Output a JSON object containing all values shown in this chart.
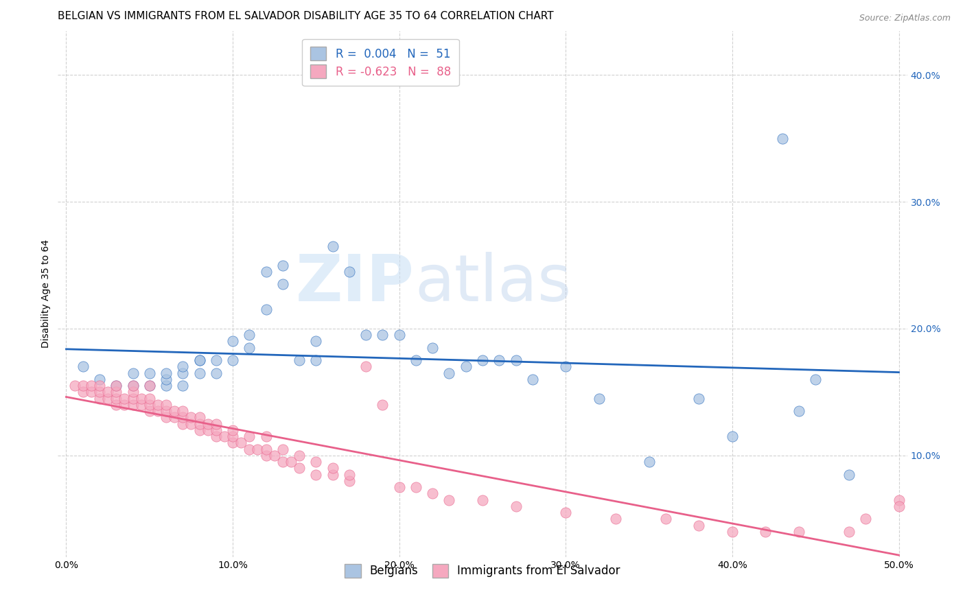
{
  "title": "BELGIAN VS IMMIGRANTS FROM EL SALVADOR DISABILITY AGE 35 TO 64 CORRELATION CHART",
  "source": "Source: ZipAtlas.com",
  "xlabel_ticks": [
    "0.0%",
    "10.0%",
    "20.0%",
    "30.0%",
    "40.0%",
    "50.0%"
  ],
  "xlabel_vals": [
    0.0,
    0.1,
    0.2,
    0.3,
    0.4,
    0.5
  ],
  "ylabel": "Disability Age 35 to 64",
  "right_ytick_labels": [
    "10.0%",
    "20.0%",
    "30.0%",
    "40.0%"
  ],
  "right_ytick_vals": [
    0.1,
    0.2,
    0.3,
    0.4
  ],
  "xlim": [
    -0.005,
    0.505
  ],
  "ylim": [
    0.02,
    0.435
  ],
  "watermark_zip": "ZIP",
  "watermark_atlas": "atlas",
  "belgian_color": "#aac4e2",
  "salvador_color": "#f5a8bf",
  "belgian_line_color": "#2266bb",
  "salvador_line_color": "#e8608a",
  "belgian_R": 0.004,
  "belgian_N": 51,
  "salvador_R": -0.623,
  "salvador_N": 88,
  "belgian_scatter_x": [
    0.01,
    0.02,
    0.03,
    0.04,
    0.04,
    0.05,
    0.05,
    0.06,
    0.06,
    0.06,
    0.07,
    0.07,
    0.07,
    0.08,
    0.08,
    0.08,
    0.09,
    0.09,
    0.1,
    0.1,
    0.11,
    0.11,
    0.12,
    0.12,
    0.13,
    0.13,
    0.14,
    0.15,
    0.15,
    0.16,
    0.17,
    0.18,
    0.19,
    0.2,
    0.21,
    0.22,
    0.23,
    0.24,
    0.25,
    0.26,
    0.27,
    0.28,
    0.3,
    0.32,
    0.35,
    0.38,
    0.4,
    0.43,
    0.44,
    0.45,
    0.47
  ],
  "belgian_scatter_y": [
    0.17,
    0.16,
    0.155,
    0.155,
    0.165,
    0.155,
    0.165,
    0.155,
    0.16,
    0.165,
    0.155,
    0.165,
    0.17,
    0.165,
    0.175,
    0.175,
    0.165,
    0.175,
    0.175,
    0.19,
    0.185,
    0.195,
    0.215,
    0.245,
    0.235,
    0.25,
    0.175,
    0.19,
    0.175,
    0.265,
    0.245,
    0.195,
    0.195,
    0.195,
    0.175,
    0.185,
    0.165,
    0.17,
    0.175,
    0.175,
    0.175,
    0.16,
    0.17,
    0.145,
    0.095,
    0.145,
    0.115,
    0.35,
    0.135,
    0.16,
    0.085
  ],
  "salvador_scatter_x": [
    0.005,
    0.01,
    0.01,
    0.015,
    0.015,
    0.02,
    0.02,
    0.02,
    0.025,
    0.025,
    0.03,
    0.03,
    0.03,
    0.03,
    0.035,
    0.035,
    0.04,
    0.04,
    0.04,
    0.04,
    0.045,
    0.045,
    0.05,
    0.05,
    0.05,
    0.05,
    0.055,
    0.055,
    0.06,
    0.06,
    0.06,
    0.065,
    0.065,
    0.07,
    0.07,
    0.07,
    0.075,
    0.075,
    0.08,
    0.08,
    0.08,
    0.085,
    0.085,
    0.09,
    0.09,
    0.09,
    0.095,
    0.1,
    0.1,
    0.1,
    0.105,
    0.11,
    0.11,
    0.115,
    0.12,
    0.12,
    0.12,
    0.125,
    0.13,
    0.13,
    0.135,
    0.14,
    0.14,
    0.15,
    0.15,
    0.16,
    0.16,
    0.17,
    0.17,
    0.18,
    0.19,
    0.2,
    0.21,
    0.22,
    0.23,
    0.25,
    0.27,
    0.3,
    0.33,
    0.36,
    0.38,
    0.4,
    0.42,
    0.44,
    0.47,
    0.48,
    0.5,
    0.5
  ],
  "salvador_scatter_y": [
    0.155,
    0.15,
    0.155,
    0.15,
    0.155,
    0.145,
    0.15,
    0.155,
    0.145,
    0.15,
    0.14,
    0.145,
    0.15,
    0.155,
    0.14,
    0.145,
    0.14,
    0.145,
    0.15,
    0.155,
    0.14,
    0.145,
    0.135,
    0.14,
    0.145,
    0.155,
    0.135,
    0.14,
    0.13,
    0.135,
    0.14,
    0.13,
    0.135,
    0.125,
    0.13,
    0.135,
    0.125,
    0.13,
    0.12,
    0.125,
    0.13,
    0.12,
    0.125,
    0.115,
    0.12,
    0.125,
    0.115,
    0.11,
    0.115,
    0.12,
    0.11,
    0.105,
    0.115,
    0.105,
    0.1,
    0.105,
    0.115,
    0.1,
    0.095,
    0.105,
    0.095,
    0.09,
    0.1,
    0.085,
    0.095,
    0.085,
    0.09,
    0.08,
    0.085,
    0.17,
    0.14,
    0.075,
    0.075,
    0.07,
    0.065,
    0.065,
    0.06,
    0.055,
    0.05,
    0.05,
    0.045,
    0.04,
    0.04,
    0.04,
    0.04,
    0.05,
    0.065,
    0.06
  ],
  "background_color": "#ffffff",
  "grid_color": "#cccccc",
  "title_fontsize": 11,
  "axis_label_fontsize": 10,
  "tick_fontsize": 10,
  "legend_fontsize": 12
}
